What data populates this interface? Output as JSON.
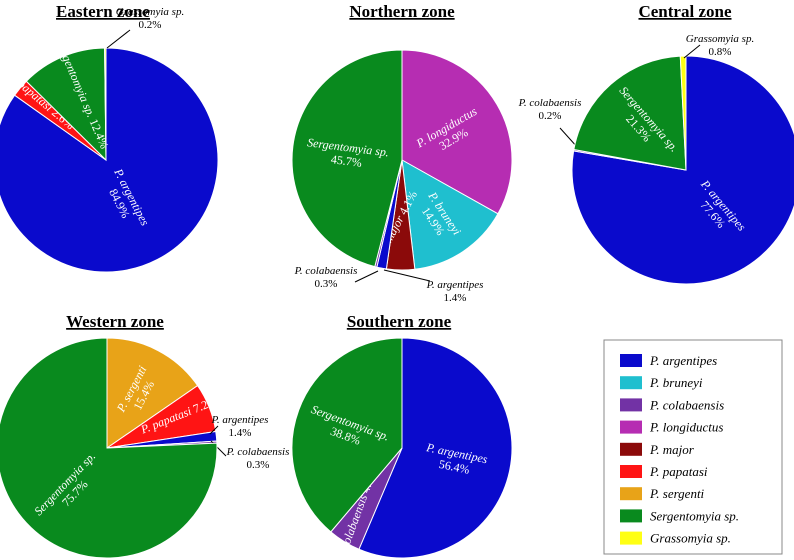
{
  "colors": {
    "P. argentipes": "#0a0acc",
    "P. bruneyi": "#1fbfcf",
    "P. colabaensis": "#7232a5",
    "P. longiductus": "#b62db2",
    "P. major": "#8b0a0a",
    "P. papatasi": "#ff1414",
    "P. sergenti": "#e8a318",
    "Sergentomyia sp.": "#098a1e",
    "Grassomyia sp.": "#ffff14"
  },
  "legend": [
    "P. argentipes",
    "P. bruneyi",
    "P. colabaensis",
    "P. longiductus",
    "P. major",
    "P. papatasi",
    "P. sergenti",
    "Sergentomyia sp.",
    "Grassomyia sp."
  ],
  "chart_data": [
    {
      "type": "pie",
      "title": "Eastern zone",
      "slices": [
        {
          "label": "P. argentipes",
          "value": 84.9,
          "pct_text": "84.9%"
        },
        {
          "label": "P. papatasi",
          "value": 2.6,
          "pct_text": "2.6%"
        },
        {
          "label": "Sergentomyia sp.",
          "value": 12.4,
          "pct_text": "12.4%"
        },
        {
          "label": "Grassomyia sp.",
          "value": 0.2,
          "pct_text": "0.2%"
        }
      ]
    },
    {
      "type": "pie",
      "title": "Northern zone",
      "slices": [
        {
          "label": "P. longiductus",
          "value": 32.9,
          "pct_text": "32.9%"
        },
        {
          "label": "P. bruneyi",
          "value": 14.9,
          "pct_text": "14.9%"
        },
        {
          "label": "P. major",
          "value": 4.1,
          "pct_text": "4.1%"
        },
        {
          "label": "P. argentipes",
          "value": 1.4,
          "pct_text": "1.4%"
        },
        {
          "label": "P. colabaensis",
          "value": 0.3,
          "pct_text": "0.3%"
        },
        {
          "label": "Sergentomyia sp.",
          "value": 45.7,
          "pct_text": "45.7%"
        }
      ]
    },
    {
      "type": "pie",
      "title": "Central zone",
      "slices": [
        {
          "label": "P. argentipes",
          "value": 77.6,
          "pct_text": "77.6%"
        },
        {
          "label": "P. colabaensis",
          "value": 0.2,
          "pct_text": "0.2%"
        },
        {
          "label": "Sergentomyia sp.",
          "value": 21.3,
          "pct_text": "21.3%"
        },
        {
          "label": "Grassomyia sp.",
          "value": 0.8,
          "pct_text": "0.8%"
        }
      ]
    },
    {
      "type": "pie",
      "title": "Western zone",
      "slices": [
        {
          "label": "P. sergenti",
          "value": 15.4,
          "pct_text": "15.4%"
        },
        {
          "label": "P. papatasi",
          "value": 7.2,
          "pct_text": "7.2%"
        },
        {
          "label": "P. argentipes",
          "value": 1.4,
          "pct_text": "1.4%"
        },
        {
          "label": "P. colabaensis",
          "value": 0.3,
          "pct_text": "0.3%"
        },
        {
          "label": "Sergentomyia sp.",
          "value": 75.7,
          "pct_text": "75.7%"
        }
      ]
    },
    {
      "type": "pie",
      "title": "Southern zone",
      "slices": [
        {
          "label": "P. argentipes",
          "value": 56.4,
          "pct_text": "56.4%"
        },
        {
          "label": "P. colabaensis",
          "value": 4.8,
          "pct_text": "4.8%"
        },
        {
          "label": "Sergentomyia sp.",
          "value": 38.8,
          "pct_text": "38.8%"
        }
      ]
    }
  ]
}
